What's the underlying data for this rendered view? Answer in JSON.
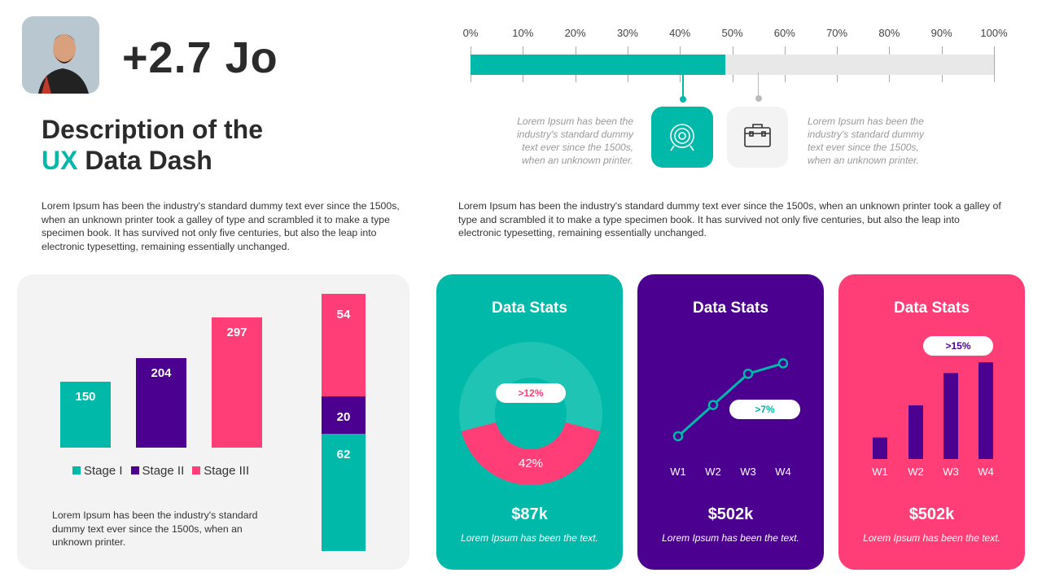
{
  "header": {
    "metric": "+2.7 Jo",
    "title_line1": "Description of the",
    "title_accent": "UX",
    "title_line2_rest": " Data Dash",
    "paragraph": "Lorem Ipsum has been the industry's standard dummy text ever since the 1500s, when an unknown printer took a galley of type and scrambled it to make a type specimen book. It has survived not only five centuries, but also the leap into electronic typesetting, remaining essentially unchanged."
  },
  "progress": {
    "ticks": [
      "0%",
      "10%",
      "20%",
      "30%",
      "40%",
      "50%",
      "60%",
      "70%",
      "80%",
      "90%",
      "100%"
    ],
    "value_percent": 48.7,
    "note_left": "Lorem Ipsum has been the industry's standard dummy text ever since the 1500s, when an unknown printer.",
    "note_right": "Lorem Ipsum has been the industry's standard dummy text ever since the 1500s, when an unknown printer.",
    "icons": [
      "target-icon",
      "briefcase-icon"
    ],
    "paragraph": "Lorem Ipsum has been the industry's standard dummy text ever since the 1500s, when an unknown printer took a galley of type and scrambled it to make a type specimen book. It has survived not only five centuries, but also the leap into electronic typesetting, remaining essentially unchanged."
  },
  "colors": {
    "teal": "#00b9a8",
    "purple": "#4b0090",
    "pink": "#ff3d76",
    "panel": "#f3f3f3"
  },
  "panel": {
    "paragraph": "Lorem Ipsum has been the industry's standard dummy text ever since the 1500s, when an unknown printer."
  },
  "chart_data": [
    {
      "type": "bar",
      "categories": [
        "Stage I",
        "Stage II",
        "Stage III"
      ],
      "values": [
        150,
        204,
        297
      ],
      "legend": "bottom"
    },
    {
      "type": "bar",
      "stacked": true,
      "segments": [
        {
          "value": 62,
          "color": "#00b9a8"
        },
        {
          "value": 20,
          "color": "#4b0090"
        },
        {
          "value": 54,
          "color": "#ff3d76"
        }
      ]
    },
    {
      "type": "pie",
      "title": "Data Stats",
      "donut": true,
      "highlight_label": "42%",
      "highlight_value": 42,
      "badge": ">12%",
      "value": "$87k",
      "caption": "Lorem Ipsum has been the text."
    },
    {
      "type": "line",
      "title": "Data Stats",
      "categories": [
        "W1",
        "W2",
        "W3",
        "W4"
      ],
      "values": [
        10,
        40,
        70,
        80
      ],
      "badge": ">7%",
      "value": "$502k",
      "caption": "Lorem Ipsum has been the text."
    },
    {
      "type": "bar",
      "title": "Data Stats",
      "categories": [
        "W1",
        "W2",
        "W3",
        "W4"
      ],
      "values": [
        20,
        50,
        80,
        90
      ],
      "badge": ">15%",
      "value": "$502k",
      "caption": "Lorem Ipsum has been the text."
    }
  ]
}
